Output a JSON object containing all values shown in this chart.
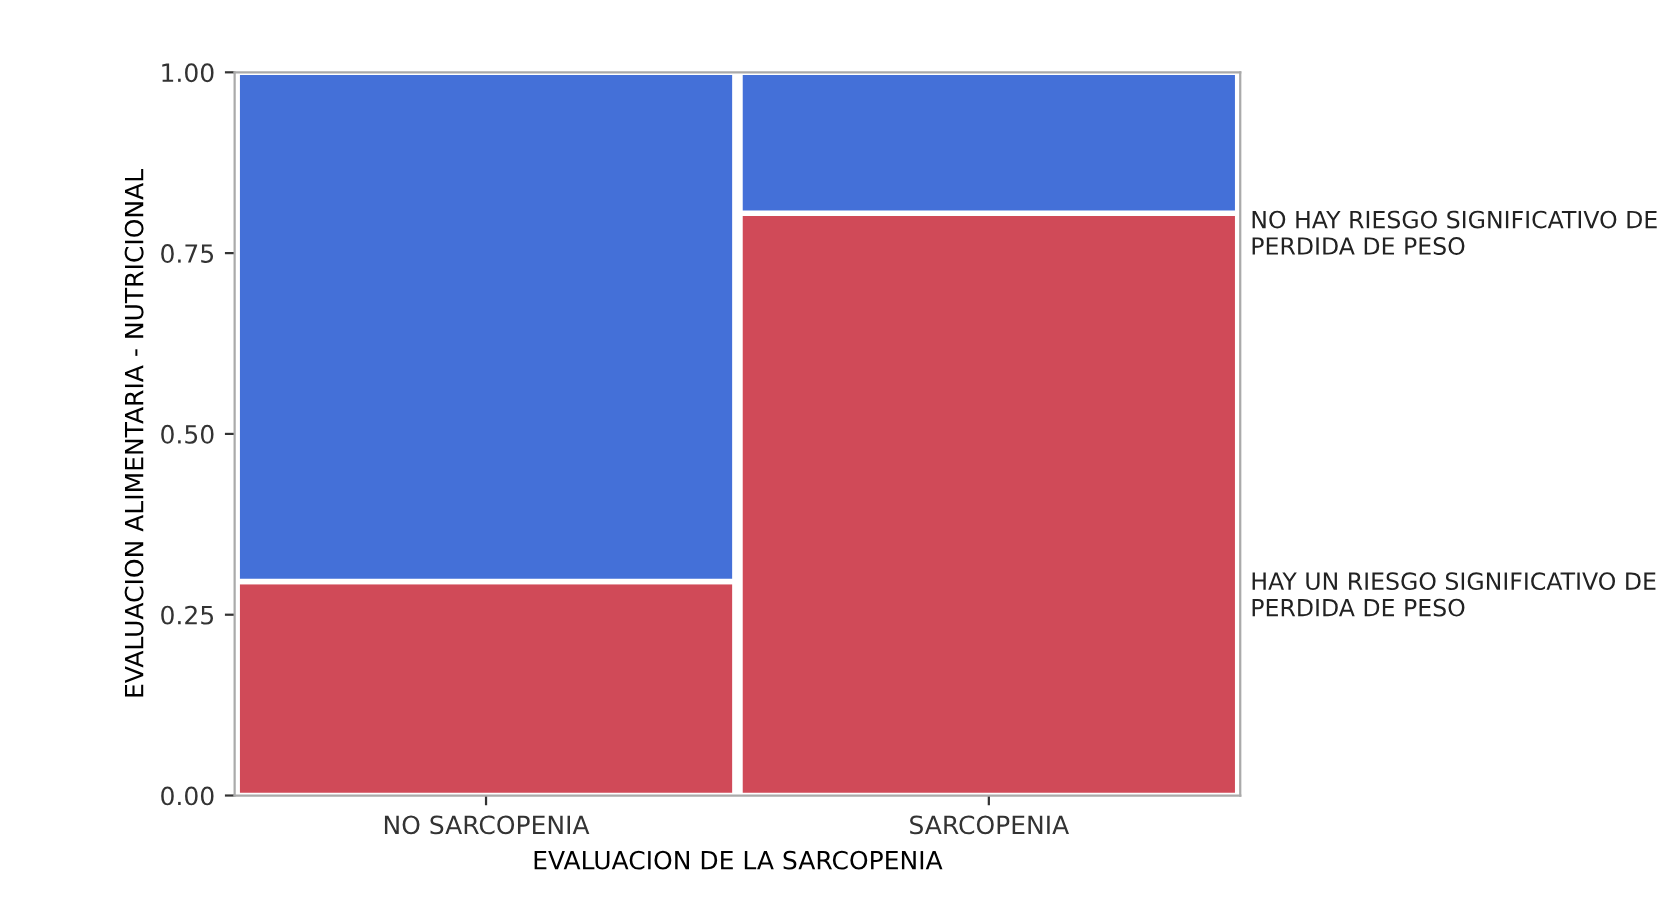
{
  "chart_data": {
    "type": "bar",
    "stacked": true,
    "xlabel": "EVALUACION DE LA SARCOPENIA",
    "ylabel": "EVALUACION ALIMENTARIA - NUTRICIONAL",
    "categories": [
      "NO SARCOPENIA",
      "SARCOPENIA"
    ],
    "series": [
      {
        "name": "HAY UN RIESGO SIGNIFICATIVO DE PERDIDA DE PESO",
        "color": "#d04a58",
        "values": [
          0.296,
          0.805
        ]
      },
      {
        "name": "NO HAY RIESGO SIGNIFICATIVO DE PERDIDA DE PESO",
        "color": "#4470d8",
        "values": [
          0.704,
          0.195
        ]
      }
    ],
    "ylim": [
      0,
      1
    ],
    "yticks": [
      {
        "value": 0,
        "label": "0.00"
      },
      {
        "value": 0.25,
        "label": "0.25"
      },
      {
        "value": 0.5,
        "label": "0.50"
      },
      {
        "value": 0.75,
        "label": "0.75"
      },
      {
        "value": 1,
        "label": "1.00"
      }
    ],
    "grid": false,
    "legend": "right"
  }
}
